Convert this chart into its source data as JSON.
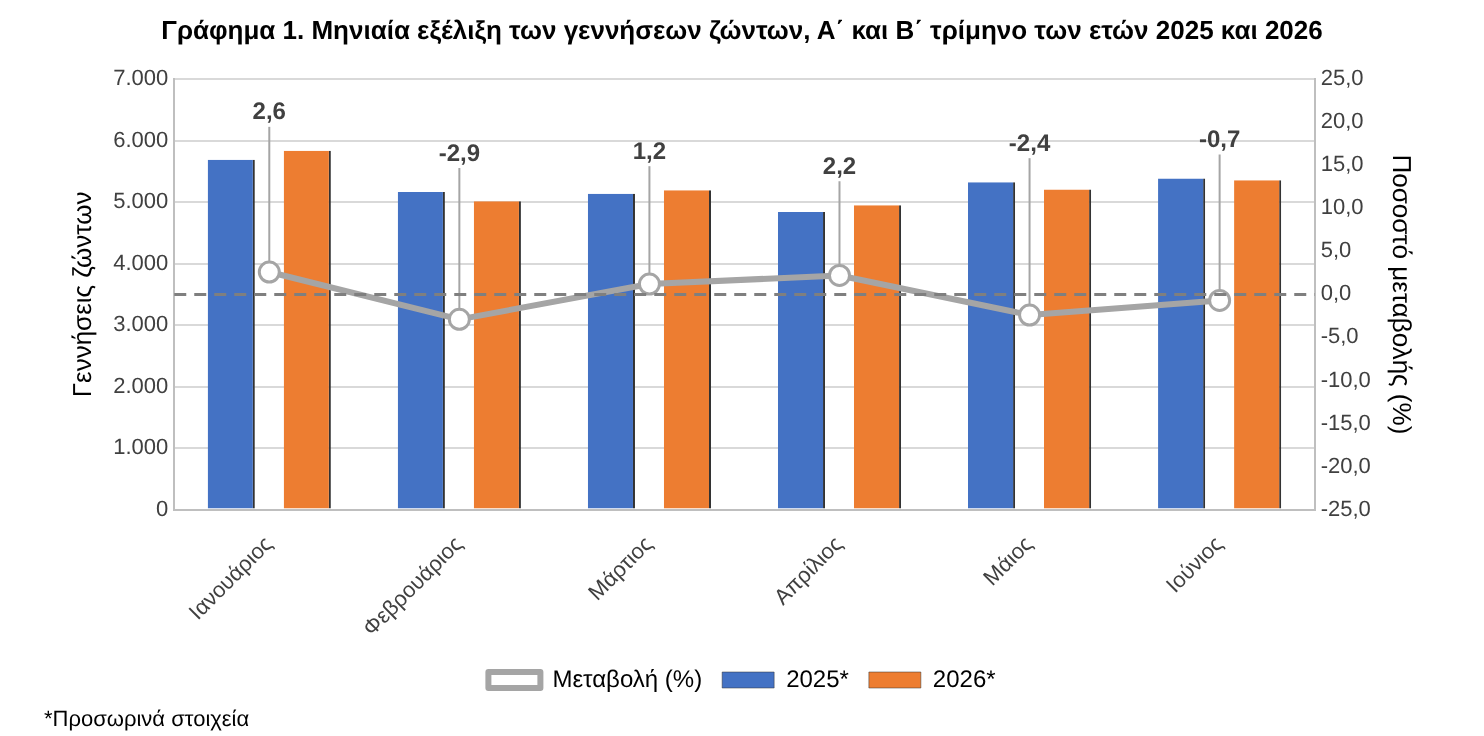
{
  "chart_data": {
    "type": "bar",
    "title": "Γράφημα 1. Μηνιαία εξέλιξη των γεννήσεων ζώντων, Α΄ και Β΄ τρίμηνο των ετών 2025 και 2026",
    "categories": [
      "Ιανουάριος",
      "Φεβρουάριος",
      "Μάρτιος",
      "Απρίλιος",
      "Μάιος",
      "Ιούνιος"
    ],
    "series": [
      {
        "name": "2025*",
        "color": "#4472c4",
        "values": [
          5690,
          5165,
          5135,
          4840,
          5325,
          5385
        ]
      },
      {
        "name": "2026*",
        "color": "#ed7d31",
        "values": [
          5835,
          5015,
          5195,
          4950,
          5205,
          5355
        ]
      },
      {
        "name": "Μεταβολή (%)",
        "type": "line",
        "axis": "y2",
        "color": "#a5a5a5",
        "marker": "circle",
        "values": [
          2.6,
          -2.9,
          1.2,
          2.2,
          -2.4,
          -0.7
        ],
        "value_labels": [
          "2,6",
          "-2,9",
          "1,2",
          "2,2",
          "-2,4",
          "-0,7"
        ]
      }
    ],
    "ylabel": "Γεννήσεις ζώντων",
    "y2label": "Ποσοστό μεταβολής (%)",
    "ylim": [
      0,
      7000
    ],
    "yticks": [
      {
        "value": 0,
        "label": "0"
      },
      {
        "value": 1000,
        "label": "1.000"
      },
      {
        "value": 2000,
        "label": "2.000"
      },
      {
        "value": 3000,
        "label": "3.000"
      },
      {
        "value": 4000,
        "label": "4.000"
      },
      {
        "value": 5000,
        "label": "5.000"
      },
      {
        "value": 6000,
        "label": "6.000"
      },
      {
        "value": 7000,
        "label": "7.000"
      }
    ],
    "y2lim": [
      -25,
      25
    ],
    "y2ticks": [
      {
        "value": -25,
        "label": "-25,0"
      },
      {
        "value": -20,
        "label": "-20,0"
      },
      {
        "value": -15,
        "label": "-15,0"
      },
      {
        "value": -10,
        "label": "-10,0"
      },
      {
        "value": -5,
        "label": "-5,0"
      },
      {
        "value": 0,
        "label": "0,0"
      },
      {
        "value": 5,
        "label": "5,0"
      },
      {
        "value": 10,
        "label": "10,0"
      },
      {
        "value": 15,
        "label": "15,0"
      },
      {
        "value": 20,
        "label": "20,0"
      },
      {
        "value": 25,
        "label": "25,0"
      }
    ],
    "ref_lines": [
      {
        "axis": "y2",
        "value": 0,
        "color": "#7f7f7f",
        "line_style": "dashed"
      }
    ],
    "grid": "y",
    "legend": "bottom",
    "annotations": [
      "*Προσωρινά στοιχεία"
    ]
  }
}
